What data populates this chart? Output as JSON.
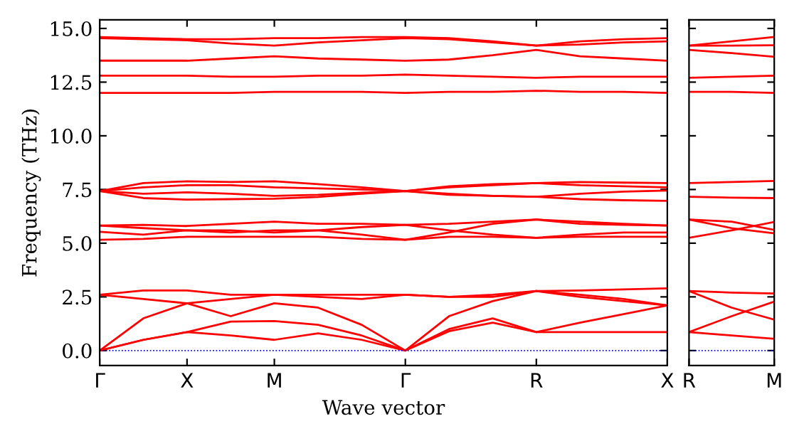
{
  "chart_data": [
    {
      "type": "line",
      "xlabel": "Wave vector",
      "ylabel": "Frequency (THz)",
      "categories": [
        "Γ",
        null,
        "X",
        null,
        "M",
        null,
        null,
        "Γ",
        null,
        null,
        "R",
        null,
        null,
        "X"
      ],
      "ylim": [
        -0.7,
        15.4
      ],
      "yticks": [
        {
          "value": 0,
          "label": "0.0"
        },
        2.5,
        {
          "value": 5,
          "label": "5.0"
        },
        7.5,
        {
          "value": 10,
          "label": "10.0"
        },
        12.5,
        {
          "value": 15,
          "label": "15.0"
        }
      ],
      "line_style": "solid",
      "marker": "none",
      "ref_lines": [
        {
          "axis": "y",
          "value": 0,
          "color": "#0000ff",
          "line_style": "dotted"
        }
      ],
      "series": [
        {
          "color": "#ff0000",
          "values": [
            0,
            0.5,
            0.86,
            0.7,
            0.5,
            0.8,
            0.5,
            0,
            0.9,
            1.3,
            0.86,
            0.86,
            0.86,
            0.86
          ]
        },
        {
          "color": "#ff0000",
          "values": [
            0,
            0.5,
            0.86,
            1.35,
            1.37,
            1.2,
            0.7,
            0,
            1.0,
            1.5,
            0.86,
            1.3,
            1.7,
            2.1
          ]
        },
        {
          "color": "#ff0000",
          "values": [
            0,
            1.5,
            2.2,
            1.6,
            2.2,
            2.0,
            1.2,
            0,
            1.6,
            2.3,
            2.77,
            2.5,
            2.3,
            2.1
          ]
        },
        {
          "color": "#ff0000",
          "values": [
            2.6,
            2.4,
            2.2,
            2.4,
            2.6,
            2.5,
            2.4,
            2.6,
            2.5,
            2.5,
            2.77,
            2.6,
            2.4,
            2.1
          ]
        },
        {
          "color": "#ff0000",
          "values": [
            2.6,
            2.8,
            2.8,
            2.6,
            2.6,
            2.6,
            2.6,
            2.6,
            2.5,
            2.6,
            2.77,
            2.8,
            2.85,
            2.9
          ]
        },
        {
          "color": "#ff0000",
          "values": [
            5.16,
            5.2,
            5.3,
            5.3,
            5.3,
            5.3,
            5.2,
            5.16,
            5.5,
            5.9,
            6.1,
            6.0,
            5.9,
            5.82
          ]
        },
        {
          "color": "#ff0000",
          "values": [
            5.53,
            5.4,
            5.6,
            5.5,
            5.6,
            5.6,
            5.4,
            5.16,
            5.3,
            5.3,
            5.25,
            5.4,
            5.5,
            5.5
          ]
        },
        {
          "color": "#ff0000",
          "values": [
            5.82,
            5.85,
            5.8,
            5.9,
            6.0,
            5.9,
            5.9,
            5.85,
            5.6,
            5.4,
            5.25,
            5.3,
            5.3,
            5.3
          ]
        },
        {
          "color": "#ff0000",
          "values": [
            5.82,
            5.7,
            5.6,
            5.6,
            5.5,
            5.6,
            5.75,
            5.85,
            5.9,
            6.0,
            6.1,
            5.9,
            5.85,
            5.82
          ]
        },
        {
          "color": "#ff0000",
          "values": [
            7.43,
            7.1,
            7.03,
            7.05,
            7.07,
            7.15,
            7.3,
            7.43,
            7.3,
            7.2,
            7.16,
            7.05,
            7.0,
            6.97
          ]
        },
        {
          "color": "#ff0000",
          "values": [
            7.43,
            7.3,
            7.37,
            7.3,
            7.2,
            7.25,
            7.35,
            7.43,
            7.25,
            7.2,
            7.16,
            7.3,
            7.4,
            7.45
          ]
        },
        {
          "color": "#ff0000",
          "values": [
            7.43,
            7.6,
            7.7,
            7.7,
            7.6,
            7.55,
            7.5,
            7.43,
            7.6,
            7.7,
            7.8,
            7.7,
            7.65,
            7.6
          ]
        },
        {
          "color": "#ff0000",
          "values": [
            7.43,
            7.8,
            7.88,
            7.85,
            7.88,
            7.75,
            7.6,
            7.43,
            7.65,
            7.75,
            7.8,
            7.85,
            7.82,
            7.8
          ]
        },
        {
          "color": "#ff0000",
          "values": [
            12.0,
            12.0,
            12.0,
            12.0,
            12.05,
            12.05,
            12.05,
            12.0,
            12.05,
            12.05,
            12.1,
            12.05,
            12.05,
            12.0
          ]
        },
        {
          "color": "#ff0000",
          "values": [
            12.8,
            12.8,
            12.8,
            12.75,
            12.75,
            12.8,
            12.8,
            12.85,
            12.8,
            12.75,
            12.7,
            12.75,
            12.75,
            12.75
          ]
        },
        {
          "color": "#ff0000",
          "values": [
            13.5,
            13.5,
            13.5,
            13.6,
            13.7,
            13.6,
            13.55,
            13.5,
            13.55,
            13.75,
            14.0,
            13.7,
            13.6,
            13.5
          ]
        },
        {
          "color": "#ff0000",
          "values": [
            14.55,
            14.5,
            14.45,
            14.3,
            14.2,
            14.35,
            14.45,
            14.55,
            14.5,
            14.35,
            14.2,
            14.25,
            14.35,
            14.4
          ]
        },
        {
          "color": "#ff0000",
          "values": [
            14.6,
            14.55,
            14.5,
            14.5,
            14.55,
            14.55,
            14.6,
            14.6,
            14.55,
            14.4,
            14.2,
            14.4,
            14.5,
            14.55
          ]
        }
      ]
    },
    {
      "type": "line",
      "categories": [
        "R",
        null,
        "M"
      ],
      "ylim": [
        -0.7,
        15.4
      ],
      "yticks": [
        {
          "value": 0,
          "label": null
        },
        {
          "value": 2.5,
          "label": null
        },
        {
          "value": 5,
          "label": null
        },
        {
          "value": 7.5,
          "label": null
        },
        {
          "value": 10,
          "label": null
        },
        {
          "value": 12.5,
          "label": null
        },
        {
          "value": 15,
          "label": null
        }
      ],
      "tick_labels": "x",
      "line_style": "solid",
      "marker": "none",
      "ref_lines": [
        {
          "axis": "y",
          "value": 0,
          "color": "#0000ff",
          "line_style": "dotted"
        }
      ],
      "series": [
        {
          "color": "#ff0000",
          "values": [
            0.86,
            0.7,
            0.55
          ]
        },
        {
          "color": "#ff0000",
          "values": [
            0.86,
            1.6,
            2.28
          ]
        },
        {
          "color": "#ff0000",
          "values": [
            2.77,
            2.0,
            1.44
          ]
        },
        {
          "color": "#ff0000",
          "values": [
            2.77,
            2.7,
            2.66
          ]
        },
        {
          "color": "#ff0000",
          "values": [
            5.25,
            5.6,
            5.99
          ]
        },
        {
          "color": "#ff0000",
          "values": [
            6.1,
            5.7,
            5.46
          ]
        },
        {
          "color": "#ff0000",
          "values": [
            6.1,
            6.0,
            5.62
          ]
        },
        {
          "color": "#ff0000",
          "values": [
            7.16,
            7.12,
            7.1
          ]
        },
        {
          "color": "#ff0000",
          "values": [
            7.8,
            7.85,
            7.9
          ]
        },
        {
          "color": "#ff0000",
          "values": [
            12.05,
            12.05,
            12.0
          ]
        },
        {
          "color": "#ff0000",
          "values": [
            12.7,
            12.75,
            12.8
          ]
        },
        {
          "color": "#ff0000",
          "values": [
            14.0,
            13.85,
            13.68
          ]
        },
        {
          "color": "#ff0000",
          "values": [
            14.2,
            14.2,
            14.22
          ]
        },
        {
          "color": "#ff0000",
          "values": [
            14.2,
            14.4,
            14.6
          ]
        }
      ]
    }
  ]
}
